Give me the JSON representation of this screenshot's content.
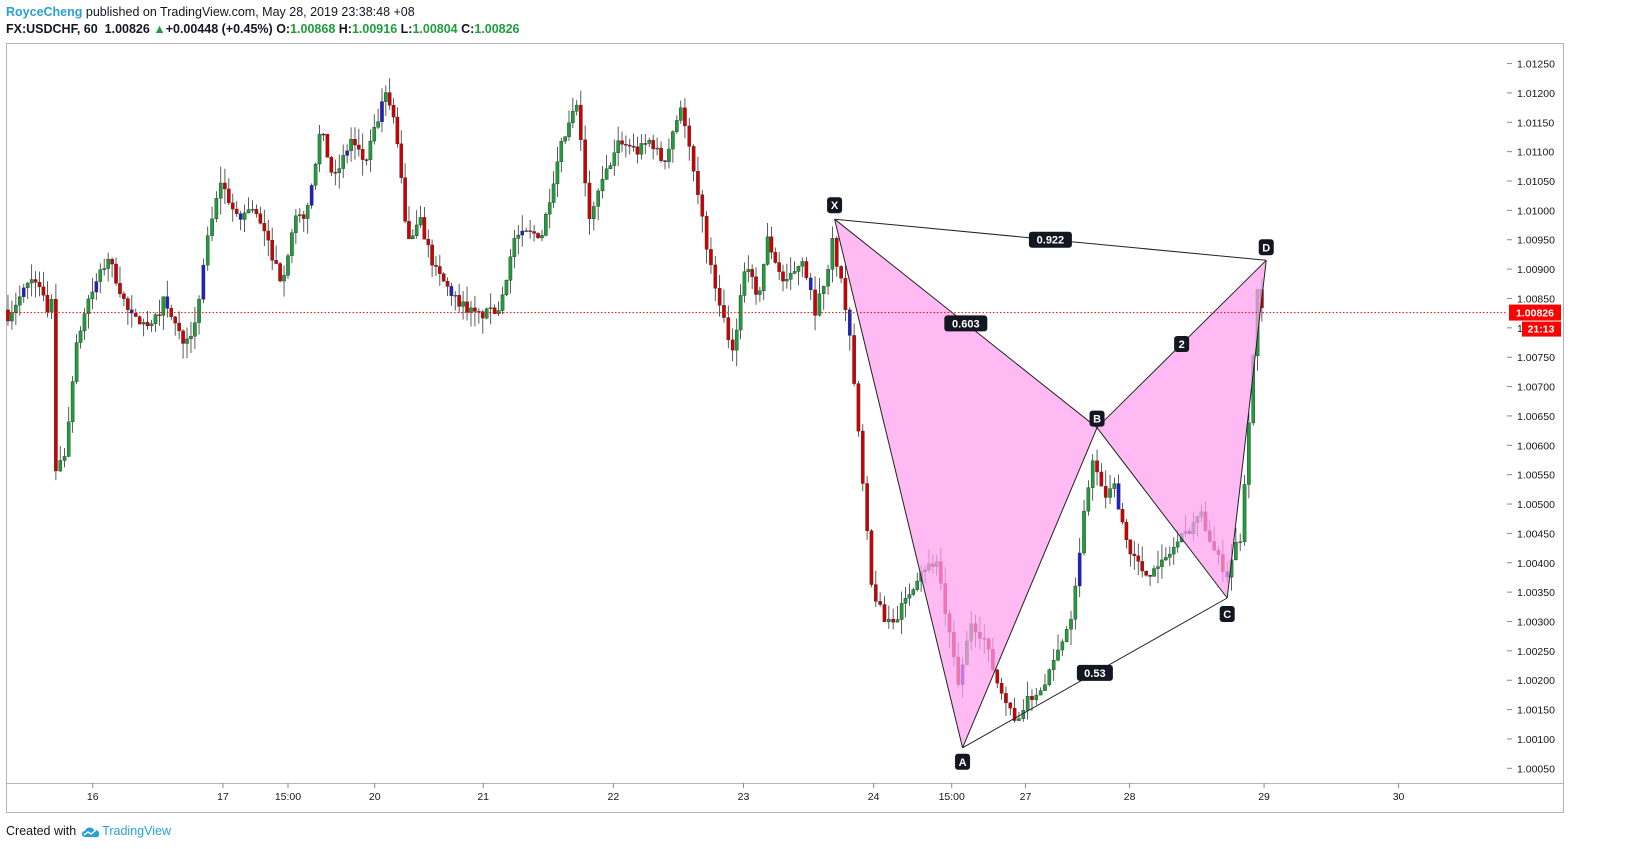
{
  "header": {
    "author": "RoyceCheng",
    "published": "published on TradingView.com, May 28, 2019 23:38:48 +08",
    "symbol": "FX:USDCHF, 60",
    "last": "1.00826",
    "change_arrow": "▲",
    "change": "+0.00448 (+0.45%)",
    "open_label": "O:",
    "open": "1.00868",
    "high_label": "H:",
    "high": "1.00916",
    "low_label": "L:",
    "low": "1.00804",
    "close_label": "C:",
    "close": "1.00826"
  },
  "footer": {
    "created_with": "Created with",
    "brand": "TradingView",
    "brand_icon": "tradingview-cloud-icon"
  },
  "price_badge": {
    "price": "1.00826",
    "countdown": "21:13",
    "color": "#ff0000"
  },
  "colors": {
    "up": "#1e9e3a",
    "down": "#d00000",
    "blue": "#1e1ecc",
    "pattern_fill": "#ff9ff0",
    "line": "#222222"
  },
  "chart_data": {
    "type": "candlestick",
    "symbol": "FX:USDCHF",
    "timeframe": "60",
    "y_ticks": [
      "1.01250",
      "1.01200",
      "1.01150",
      "1.01100",
      "1.01050",
      "1.01000",
      "1.00950",
      "1.00900",
      "1.00850",
      "1.00800",
      "1.00750",
      "1.00700",
      "1.00650",
      "1.00600",
      "1.00550",
      "1.00500",
      "1.00450",
      "1.00400",
      "1.00350",
      "1.00300",
      "1.00250",
      "1.00200",
      "1.00150",
      "1.00100",
      "1.00050"
    ],
    "y_range": [
      1.00025,
      1.01285
    ],
    "x_ticks": [
      {
        "label": "16",
        "x": 20
      },
      {
        "label": "17",
        "x": 50
      },
      {
        "label": "15:00",
        "x": 65
      },
      {
        "label": "20",
        "x": 85
      },
      {
        "label": "21",
        "x": 110
      },
      {
        "label": "22",
        "x": 140
      },
      {
        "label": "23",
        "x": 170
      },
      {
        "label": "24",
        "x": 200
      },
      {
        "label": "15:00",
        "x": 218
      },
      {
        "label": "27",
        "x": 235
      },
      {
        "label": "28",
        "x": 259
      },
      {
        "label": "29",
        "x": 290
      },
      {
        "label": "30",
        "x": 321
      }
    ],
    "x_range": [
      0,
      346
    ],
    "current_price": 1.00826,
    "harmonic_pattern": {
      "points": [
        {
          "label": "X",
          "x": 191,
          "price": 1.00985
        },
        {
          "label": "A",
          "x": 220.5,
          "price": 1.00085
        },
        {
          "label": "B",
          "x": 251.5,
          "price": 1.0063
        },
        {
          "label": "C",
          "x": 281.5,
          "price": 1.0034
        },
        {
          "label": "D",
          "x": 290.5,
          "price": 1.00915
        }
      ],
      "ratios": [
        {
          "label": "0.922",
          "between": [
            "X",
            "D"
          ]
        },
        {
          "label": "0.603",
          "between": [
            "X",
            "B"
          ]
        },
        {
          "label": "2",
          "between": [
            "B",
            "D"
          ]
        },
        {
          "label": "0.53",
          "between": [
            "A",
            "C"
          ]
        }
      ]
    },
    "segments": [
      {
        "x0": 0,
        "x1": 10,
        "p": [
          [
            1.0081,
            0
          ],
          [
            1.00845,
            0.3
          ],
          [
            1.0089,
            0.7
          ],
          [
            1.0083,
            1
          ]
        ]
      },
      {
        "x0": 10,
        "x1": 14,
        "p": [
          [
            1.0083,
            0
          ],
          [
            1.0086,
            0.3
          ],
          [
            1.0056,
            0.5
          ],
          [
            1.0058,
            1
          ]
        ]
      },
      {
        "x0": 14,
        "x1": 24,
        "p": [
          [
            1.0058,
            0
          ],
          [
            1.0076,
            0.25
          ],
          [
            1.0084,
            0.5
          ],
          [
            1.0092,
            1
          ]
        ]
      },
      {
        "x0": 24,
        "x1": 34,
        "p": [
          [
            1.0092,
            0
          ],
          [
            1.0082,
            0.5
          ],
          [
            1.008,
            1
          ]
        ]
      },
      {
        "x0": 34,
        "x1": 44,
        "p": [
          [
            1.008,
            0
          ],
          [
            1.0085,
            0.3
          ],
          [
            1.0078,
            0.7
          ],
          [
            1.008,
            1
          ]
        ]
      },
      {
        "x0": 44,
        "x1": 50,
        "p": [
          [
            1.008,
            0
          ],
          [
            1.0095,
            0.5
          ],
          [
            1.0105,
            1
          ]
        ]
      },
      {
        "x0": 50,
        "x1": 60,
        "p": [
          [
            1.0105,
            0
          ],
          [
            1.0098,
            0.4
          ],
          [
            1.0101,
            0.7
          ],
          [
            1.0096,
            1
          ]
        ]
      },
      {
        "x0": 60,
        "x1": 70,
        "p": [
          [
            1.0096,
            0
          ],
          [
            1.0088,
            0.4
          ],
          [
            1.0098,
            0.7
          ],
          [
            1.01,
            1
          ]
        ]
      },
      {
        "x0": 70,
        "x1": 80,
        "p": [
          [
            1.01,
            0
          ],
          [
            1.0114,
            0.3
          ],
          [
            1.0105,
            0.6
          ],
          [
            1.0112,
            1
          ]
        ]
      },
      {
        "x0": 80,
        "x1": 88,
        "p": [
          [
            1.0112,
            0
          ],
          [
            1.0108,
            0.4
          ],
          [
            1.0114,
            0.7
          ],
          [
            1.012,
            1
          ]
        ]
      },
      {
        "x0": 88,
        "x1": 96,
        "p": [
          [
            1.012,
            0
          ],
          [
            1.0114,
            0.3
          ],
          [
            1.0095,
            0.6
          ],
          [
            1.0098,
            1
          ]
        ]
      },
      {
        "x0": 96,
        "x1": 104,
        "p": [
          [
            1.0098,
            0
          ],
          [
            1.009,
            0.4
          ],
          [
            1.0085,
            1
          ]
        ]
      },
      {
        "x0": 104,
        "x1": 114,
        "p": [
          [
            1.0085,
            0
          ],
          [
            1.0082,
            0.5
          ],
          [
            1.0083,
            1
          ]
        ]
      },
      {
        "x0": 114,
        "x1": 124,
        "p": [
          [
            1.0083,
            0
          ],
          [
            1.0096,
            0.4
          ],
          [
            1.0096,
            1
          ]
        ]
      },
      {
        "x0": 124,
        "x1": 132,
        "p": [
          [
            1.0096,
            0
          ],
          [
            1.011,
            0.5
          ],
          [
            1.0118,
            1
          ]
        ]
      },
      {
        "x0": 132,
        "x1": 138,
        "p": [
          [
            1.0118,
            0
          ],
          [
            1.0098,
            0.5
          ],
          [
            1.0105,
            1
          ]
        ]
      },
      {
        "x0": 138,
        "x1": 146,
        "p": [
          [
            1.0105,
            0
          ],
          [
            1.0112,
            0.5
          ],
          [
            1.011,
            1
          ]
        ]
      },
      {
        "x0": 146,
        "x1": 156,
        "p": [
          [
            1.011,
            0
          ],
          [
            1.0112,
            0.3
          ],
          [
            1.0108,
            0.6
          ],
          [
            1.0118,
            1
          ]
        ]
      },
      {
        "x0": 156,
        "x1": 163,
        "p": [
          [
            1.0118,
            0
          ],
          [
            1.011,
            0.3
          ],
          [
            1.009,
            1
          ]
        ]
      },
      {
        "x0": 163,
        "x1": 168,
        "p": [
          [
            1.009,
            0
          ],
          [
            1.0076,
            1
          ]
        ]
      },
      {
        "x0": 168,
        "x1": 176,
        "p": [
          [
            1.0076,
            0
          ],
          [
            1.0092,
            0.4
          ],
          [
            1.0084,
            0.7
          ],
          [
            1.0095,
            1
          ]
        ]
      },
      {
        "x0": 176,
        "x1": 184,
        "p": [
          [
            1.0095,
            0
          ],
          [
            1.0087,
            0.5
          ],
          [
            1.0092,
            1
          ]
        ]
      },
      {
        "x0": 184,
        "x1": 190,
        "p": [
          [
            1.0092,
            0
          ],
          [
            1.0083,
            0.5
          ],
          [
            1.009,
            1
          ]
        ]
      },
      {
        "x0": 190,
        "x1": 193,
        "p": [
          [
            1.009,
            0
          ],
          [
            1.0095,
            0.3
          ],
          [
            1.0088,
            1
          ]
        ]
      },
      {
        "x0": 193,
        "x1": 200,
        "p": [
          [
            1.0088,
            0
          ],
          [
            1.0078,
            0.3
          ],
          [
            1.0036,
            1
          ]
        ]
      },
      {
        "x0": 200,
        "x1": 206,
        "p": [
          [
            1.0036,
            0
          ],
          [
            1.003,
            0.5
          ],
          [
            1.0031,
            1
          ]
        ]
      },
      {
        "x0": 206,
        "x1": 215,
        "p": [
          [
            1.0031,
            0
          ],
          [
            1.0039,
            0.6
          ],
          [
            1.004,
            1
          ]
        ]
      },
      {
        "x0": 215,
        "x1": 220,
        "p": [
          [
            1.004,
            0
          ],
          [
            1.0019,
            1
          ]
        ]
      },
      {
        "x0": 220,
        "x1": 226,
        "p": [
          [
            1.0019,
            0
          ],
          [
            1.003,
            0.5
          ],
          [
            1.0027,
            1
          ]
        ]
      },
      {
        "x0": 226,
        "x1": 233,
        "p": [
          [
            1.0027,
            0
          ],
          [
            1.002,
            0.4
          ],
          [
            1.0013,
            1
          ]
        ]
      },
      {
        "x0": 233,
        "x1": 240,
        "p": [
          [
            1.0013,
            0
          ],
          [
            1.0017,
            0.5
          ],
          [
            1.0019,
            1
          ]
        ]
      },
      {
        "x0": 240,
        "x1": 246,
        "p": [
          [
            1.0019,
            0
          ],
          [
            1.0025,
            0.5
          ],
          [
            1.0031,
            1
          ]
        ]
      },
      {
        "x0": 246,
        "x1": 251,
        "p": [
          [
            1.0031,
            0
          ],
          [
            1.0048,
            0.6
          ],
          [
            1.0058,
            1
          ]
        ]
      },
      {
        "x0": 251,
        "x1": 256,
        "p": [
          [
            1.0058,
            0
          ],
          [
            1.0051,
            0.5
          ],
          [
            1.0053,
            1
          ]
        ]
      },
      {
        "x0": 256,
        "x1": 266,
        "p": [
          [
            1.0053,
            0
          ],
          [
            1.0043,
            0.3
          ],
          [
            1.0038,
            0.7
          ],
          [
            1.0039,
            1
          ]
        ]
      },
      {
        "x0": 266,
        "x1": 276,
        "p": [
          [
            1.0039,
            0
          ],
          [
            1.0044,
            0.5
          ],
          [
            1.0048,
            1
          ]
        ]
      },
      {
        "x0": 276,
        "x1": 282,
        "p": [
          [
            1.0048,
            0
          ],
          [
            1.0042,
            0.5
          ],
          [
            1.0038,
            1
          ]
        ]
      },
      {
        "x0": 282,
        "x1": 285,
        "p": [
          [
            1.0038,
            0
          ],
          [
            1.0042,
            0.5
          ],
          [
            1.0044,
            1
          ]
        ]
      },
      {
        "x0": 285,
        "x1": 289,
        "p": [
          [
            1.0044,
            0
          ],
          [
            1.0064,
            0.5
          ],
          [
            1.0087,
            1
          ]
        ]
      },
      {
        "x0": 289,
        "x1": 290,
        "p": [
          [
            1.0087,
            0
          ],
          [
            1.0083,
            1
          ]
        ]
      }
    ]
  }
}
